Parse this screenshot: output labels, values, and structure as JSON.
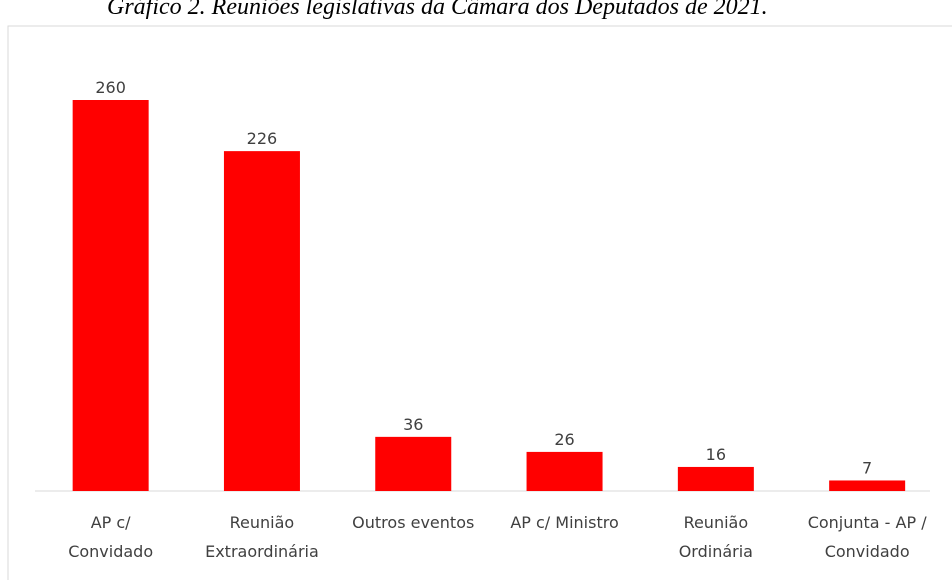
{
  "chart_data": {
    "type": "bar",
    "title": "Gráfico 2. Reuniões legislativas da Câmara dos Deputados de 2021.",
    "categories": [
      [
        "AP c/",
        "Convidado"
      ],
      [
        "Reunião",
        "Extraordinária"
      ],
      [
        "Outros eventos"
      ],
      [
        "AP c/ Ministro"
      ],
      [
        "Reunião",
        "Ordinária"
      ],
      [
        "Conjunta - AP /",
        "Convidado"
      ]
    ],
    "values": [
      260,
      226,
      36,
      26,
      16,
      7
    ],
    "color": "#ff0000"
  }
}
